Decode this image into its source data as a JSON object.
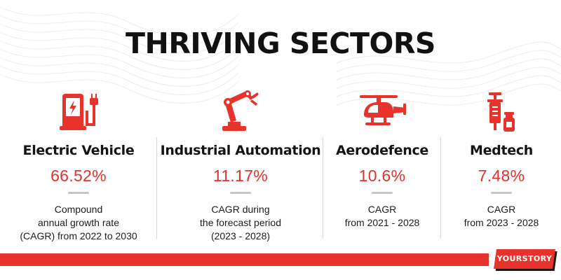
{
  "title": "THRIVING SECTORS",
  "accent_color": "#e8332d",
  "sectors": [
    {
      "icon": "ev-charger-icon",
      "name": "Electric Vehicle",
      "value": "66.52%",
      "desc": [
        "Compound",
        "annual growth rate",
        "(CAGR) from 2022 to 2030"
      ]
    },
    {
      "icon": "robot-arm-icon",
      "name": "Industrial Automation",
      "value": "11.17%",
      "desc": [
        "CAGR during",
        "the forecast period",
        "(2023 - 2028)"
      ]
    },
    {
      "icon": "helicopter-icon",
      "name": "Aerodefence",
      "value": "10.6%",
      "desc": [
        "CAGR",
        "from 2021 - 2028"
      ]
    },
    {
      "icon": "syringe-vial-icon",
      "name": "Medtech",
      "value": "7.48%",
      "desc": [
        "CAGR",
        "from 2023 - 2028"
      ]
    }
  ],
  "brand": {
    "label": "YOURSTORY"
  }
}
